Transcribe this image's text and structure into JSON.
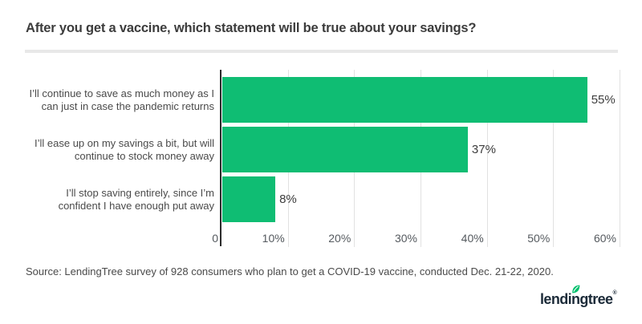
{
  "title": "After you get a vaccine, which statement will be true about your savings?",
  "source": "Source: LendingTree survey of 928 consumers who plan to get a COVID-19 vaccine, conducted Dec. 21-22, 2020.",
  "logo": {
    "text": "lendingtree",
    "reg_mark": "®",
    "leaf_color": "#00c06c",
    "text_color": "#1c2b39"
  },
  "colors": {
    "bar": "#0fbd73",
    "axis_line": "#2b2b2b",
    "gridline": "#e1e1e1",
    "title_text": "#3c3c3c",
    "category_text": "#4a4a4a",
    "tick_text": "#555a5f",
    "divider": "#e8e8e8",
    "background": "#ffffff"
  },
  "chart_data": {
    "type": "bar",
    "orientation": "horizontal",
    "title": "After you get a vaccine, which statement will be true about your savings?",
    "categories": [
      "I’ll continue to save as much money as I can just in case the pandemic returns",
      "I’ll ease up on my savings a bit, but will continue to stock money away",
      "I’ll stop saving entirely, since I’m confident I have enough put away"
    ],
    "categories_wrapped": [
      [
        "I’ll continue to save as much money as I",
        "can just in case the pandemic returns"
      ],
      [
        "I’ll ease up on my savings a bit, but will",
        "continue to stock money away"
      ],
      [
        "I’ll stop saving entirely, since I’m",
        "confident I have enough put away"
      ]
    ],
    "values": [
      55,
      37,
      8
    ],
    "value_labels": [
      "55%",
      "37%",
      "8%"
    ],
    "x_ticks": [
      "0",
      "10%",
      "20%",
      "30%",
      "40%",
      "50%",
      "60%"
    ],
    "x_tick_values": [
      0,
      10,
      20,
      30,
      40,
      50,
      60
    ],
    "xlim": [
      0,
      60.5
    ],
    "xlabel": "",
    "ylabel": "",
    "grid": true,
    "legend": false
  }
}
